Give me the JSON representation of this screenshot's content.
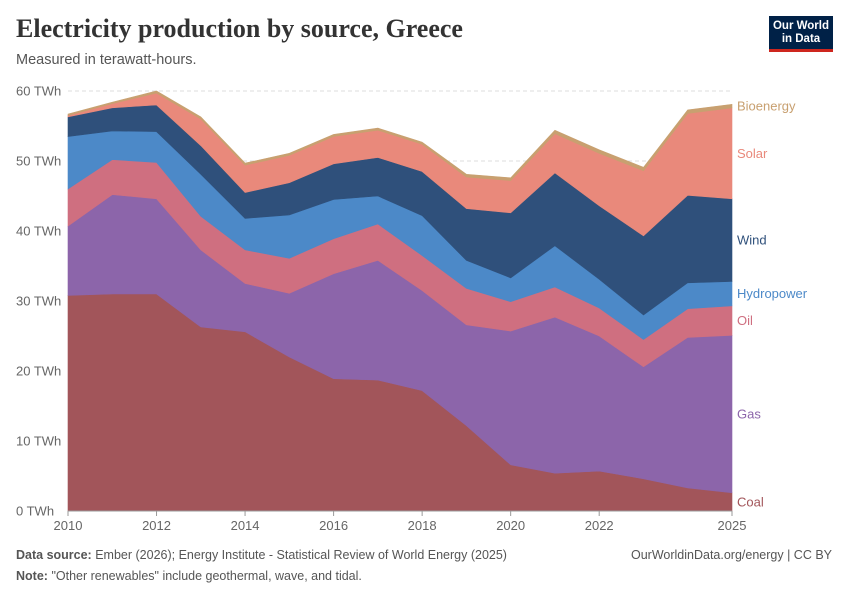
{
  "header": {
    "title": "Electricity production by source, Greece",
    "subtitle": "Measured in terawatt-hours.",
    "logo_line1": "Our World",
    "logo_line2": "in Data"
  },
  "footer": {
    "source_label": "Data source:",
    "source_text": "Ember (2026); Energy Institute - Statistical Review of World Energy (2025)",
    "note_label": "Note:",
    "note_text": "\"Other renewables\" include geothermal, wave, and tidal.",
    "credit": "OurWorldinData.org/energy | CC BY"
  },
  "chart_data": {
    "type": "area",
    "stacked": true,
    "unit": "TWh",
    "x": [
      2010,
      2011,
      2012,
      2013,
      2014,
      2015,
      2016,
      2017,
      2018,
      2019,
      2020,
      2021,
      2022,
      2023,
      2024,
      2025
    ],
    "xlim": [
      2010,
      2025
    ],
    "x_ticks": [
      "2010",
      "2012",
      "2014",
      "2016",
      "2018",
      "2020",
      "2022",
      "2025"
    ],
    "x_tick_values": [
      2010,
      2012,
      2014,
      2016,
      2018,
      2020,
      2022,
      2025
    ],
    "ylim": [
      0,
      60
    ],
    "y_ticks": [
      "0 TWh",
      "10 TWh",
      "20 TWh",
      "30 TWh",
      "40 TWh",
      "50 TWh",
      "60 TWh"
    ],
    "y_tick_values": [
      0,
      10,
      20,
      30,
      40,
      50,
      60
    ],
    "grid": "horizontal dashed",
    "legend": "right, labels at series ends",
    "series": [
      {
        "name": "Coal",
        "color": "#a2555a",
        "values": [
          30.8,
          31.0,
          31.0,
          26.3,
          25.6,
          22.0,
          18.9,
          18.7,
          17.2,
          12.2,
          6.6,
          5.4,
          5.7,
          4.6,
          3.3,
          2.6
        ]
      },
      {
        "name": "Gas",
        "color": "#8c65aa",
        "values": [
          9.9,
          14.2,
          13.6,
          11.0,
          6.9,
          9.1,
          15.0,
          17.1,
          14.3,
          14.4,
          19.1,
          22.3,
          19.3,
          16.0,
          21.5,
          22.5
        ]
      },
      {
        "name": "Oil",
        "color": "#cf6f80",
        "values": [
          5.3,
          5.0,
          5.2,
          4.8,
          4.8,
          5.0,
          5.0,
          5.2,
          5.0,
          5.2,
          4.2,
          4.3,
          4.0,
          3.9,
          4.1,
          4.2
        ]
      },
      {
        "name": "Hydropower",
        "color": "#4c89c8",
        "values": [
          7.5,
          4.1,
          4.4,
          6.0,
          4.5,
          6.2,
          5.6,
          4.0,
          5.7,
          4.0,
          3.4,
          5.9,
          4.1,
          3.5,
          3.7,
          3.5
        ]
      },
      {
        "name": "Wind",
        "color": "#2f507b",
        "values": [
          2.8,
          3.3,
          3.8,
          4.1,
          3.7,
          4.6,
          5.1,
          5.5,
          6.3,
          7.4,
          9.3,
          10.4,
          10.5,
          11.3,
          12.5,
          11.8
        ]
      },
      {
        "name": "Solar",
        "color": "#e9897b",
        "values": [
          0.2,
          0.6,
          1.7,
          3.8,
          3.9,
          3.9,
          3.9,
          3.9,
          3.9,
          4.5,
          4.6,
          5.6,
          7.5,
          9.3,
          11.7,
          13.0
        ]
      },
      {
        "name": "Bioenergy",
        "color": "#c8a070",
        "values": [
          0.2,
          0.2,
          0.3,
          0.3,
          0.3,
          0.3,
          0.3,
          0.3,
          0.3,
          0.4,
          0.4,
          0.5,
          0.5,
          0.5,
          0.5,
          0.5
        ]
      }
    ]
  }
}
